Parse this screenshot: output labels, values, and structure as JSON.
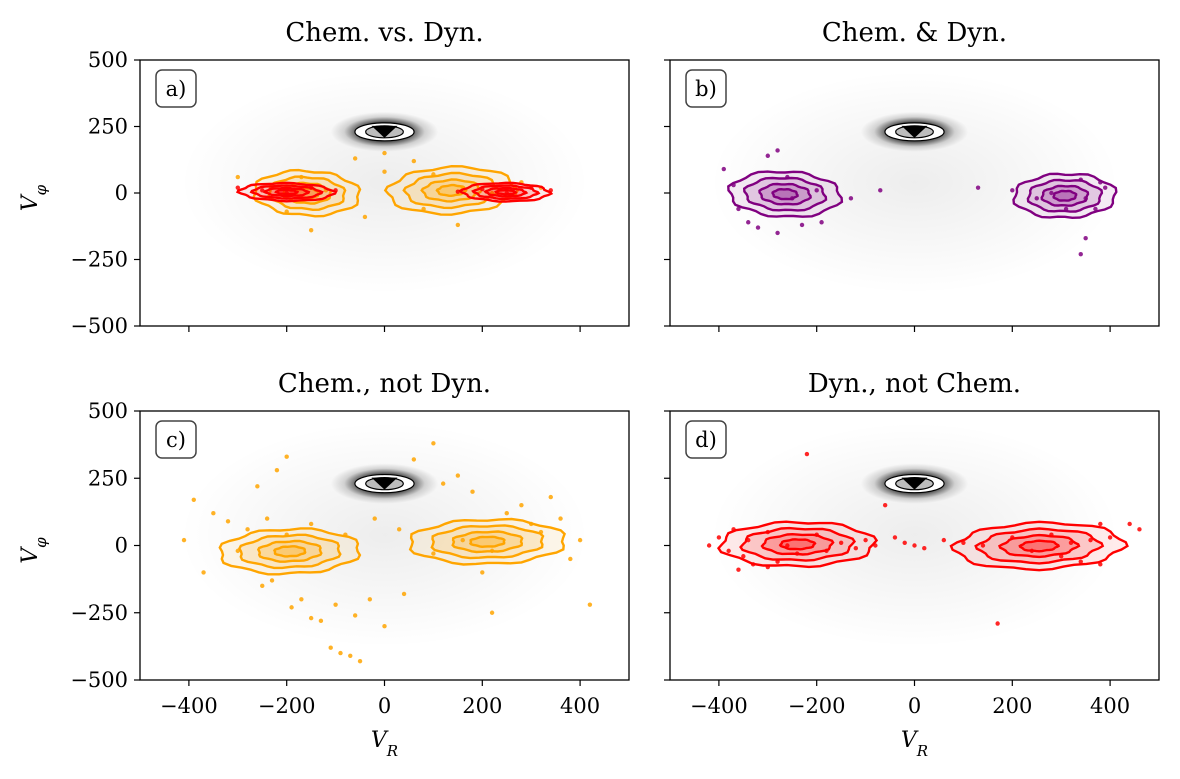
{
  "chart_data": [
    {
      "type": "scatter",
      "panel": "a)",
      "title": "Chem. vs. Dyn.",
      "xlabel": "",
      "ylabel": "V_φ",
      "xlim": [
        -500,
        500
      ],
      "ylim": [
        -500,
        500
      ],
      "xticks": [
        -400,
        -200,
        0,
        200,
        400
      ],
      "yticks": [
        500,
        250,
        0,
        -250,
        -500
      ],
      "xtick_labels_shown": false,
      "ytick_labels_shown": true,
      "background": {
        "color": "#000000",
        "center": [
          0,
          230
        ],
        "spread": [
          110,
          75
        ]
      },
      "series": [
        {
          "color": "#ffa500",
          "contours": true,
          "points": [
            [
              -230,
              20
            ],
            [
              -170,
              60
            ],
            [
              -120,
              10
            ],
            [
              -60,
              130
            ],
            [
              0,
              150
            ],
            [
              60,
              120
            ],
            [
              100,
              70
            ],
            [
              160,
              20
            ],
            [
              220,
              0
            ],
            [
              280,
              40
            ],
            [
              -200,
              -70
            ],
            [
              -40,
              -90
            ],
            [
              80,
              -60
            ],
            [
              150,
              -120
            ],
            [
              -300,
              60
            ],
            [
              320,
              20
            ],
            [
              -150,
              -140
            ],
            [
              0,
              80
            ]
          ]
        },
        {
          "color": "#ff0000",
          "contours": true,
          "points": [
            [
              -300,
              20
            ],
            [
              -250,
              10
            ],
            [
              -200,
              0
            ],
            [
              -150,
              20
            ],
            [
              -100,
              10
            ],
            [
              150,
              5
            ],
            [
              200,
              15
            ],
            [
              250,
              0
            ],
            [
              300,
              20
            ],
            [
              340,
              10
            ]
          ]
        }
      ]
    },
    {
      "type": "scatter",
      "panel": "b)",
      "title": "Chem. & Dyn.",
      "xlabel": "",
      "ylabel": "",
      "xlim": [
        -500,
        500
      ],
      "ylim": [
        -500,
        500
      ],
      "xticks": [
        -400,
        -200,
        0,
        200,
        400
      ],
      "yticks": [
        500,
        250,
        0,
        -250,
        -500
      ],
      "xtick_labels_shown": false,
      "ytick_labels_shown": false,
      "background": {
        "color": "#000000",
        "center": [
          0,
          230
        ],
        "spread": [
          110,
          75
        ]
      },
      "series": [
        {
          "color": "#800080",
          "contours": true,
          "points": [
            [
              -390,
              90
            ],
            [
              -370,
              30
            ],
            [
              -360,
              -60
            ],
            [
              -340,
              -110
            ],
            [
              -320,
              -130
            ],
            [
              -300,
              140
            ],
            [
              -280,
              160
            ],
            [
              -260,
              60
            ],
            [
              -230,
              -120
            ],
            [
              -190,
              -110
            ],
            [
              -130,
              -20
            ],
            [
              -70,
              10
            ],
            [
              130,
              20
            ],
            [
              250,
              -20
            ],
            [
              310,
              -60
            ],
            [
              340,
              50
            ],
            [
              350,
              -20
            ],
            [
              370,
              -60
            ],
            [
              380,
              40
            ],
            [
              390,
              20
            ],
            [
              350,
              -170
            ],
            [
              340,
              -230
            ],
            [
              -280,
              -150
            ],
            [
              -250,
              -20
            ],
            [
              -200,
              10
            ],
            [
              200,
              10
            ],
            [
              280,
              0
            ]
          ]
        }
      ]
    },
    {
      "type": "scatter",
      "panel": "c)",
      "title": "Chem., not Dyn.",
      "xlabel": "V_R",
      "ylabel": "V_φ",
      "xlim": [
        -500,
        500
      ],
      "ylim": [
        -500,
        500
      ],
      "xticks": [
        -400,
        -200,
        0,
        200,
        400
      ],
      "yticks": [
        500,
        250,
        0,
        -250,
        -500
      ],
      "xtick_labels_shown": true,
      "ytick_labels_shown": true,
      "background": {
        "color": "#000000",
        "center": [
          0,
          230
        ],
        "spread": [
          110,
          75
        ]
      },
      "series": [
        {
          "color": "#ffa500",
          "contours": true,
          "points": [
            [
              -410,
              20
            ],
            [
              -390,
              170
            ],
            [
              -370,
              -100
            ],
            [
              -350,
              120
            ],
            [
              -320,
              90
            ],
            [
              -300,
              -20
            ],
            [
              -280,
              60
            ],
            [
              -260,
              220
            ],
            [
              -250,
              -150
            ],
            [
              -230,
              -130
            ],
            [
              -220,
              280
            ],
            [
              -200,
              330
            ],
            [
              -190,
              -230
            ],
            [
              -170,
              -200
            ],
            [
              -150,
              -270
            ],
            [
              -130,
              -280
            ],
            [
              -110,
              -380
            ],
            [
              -90,
              -400
            ],
            [
              -70,
              -410
            ],
            [
              -50,
              -430
            ],
            [
              -100,
              -220
            ],
            [
              -60,
              -260
            ],
            [
              -30,
              -200
            ],
            [
              0,
              -300
            ],
            [
              40,
              -180
            ],
            [
              60,
              320
            ],
            [
              100,
              380
            ],
            [
              120,
              230
            ],
            [
              150,
              260
            ],
            [
              180,
              200
            ],
            [
              200,
              -100
            ],
            [
              220,
              -250
            ],
            [
              250,
              120
            ],
            [
              280,
              150
            ],
            [
              300,
              80
            ],
            [
              320,
              50
            ],
            [
              340,
              180
            ],
            [
              360,
              100
            ],
            [
              380,
              -50
            ],
            [
              400,
              20
            ],
            [
              420,
              -220
            ],
            [
              -150,
              80
            ],
            [
              -80,
              40
            ],
            [
              -20,
              100
            ],
            [
              30,
              60
            ],
            [
              100,
              -30
            ],
            [
              160,
              20
            ],
            [
              -200,
              40
            ],
            [
              -240,
              100
            ],
            [
              220,
              -20
            ]
          ]
        }
      ]
    },
    {
      "type": "scatter",
      "panel": "d)",
      "title": "Dyn., not Chem.",
      "xlabel": "V_R",
      "ylabel": "",
      "xlim": [
        -500,
        500
      ],
      "ylim": [
        -500,
        500
      ],
      "xticks": [
        -400,
        -200,
        0,
        200,
        400
      ],
      "yticks": [
        500,
        250,
        0,
        -250,
        -500
      ],
      "xtick_labels_shown": true,
      "ytick_labels_shown": false,
      "background": {
        "color": "#000000",
        "center": [
          0,
          230
        ],
        "spread": [
          110,
          75
        ]
      },
      "series": [
        {
          "color": "#ff0000",
          "contours": true,
          "points": [
            [
              -420,
              0
            ],
            [
              -400,
              30
            ],
            [
              -380,
              -20
            ],
            [
              -370,
              60
            ],
            [
              -350,
              -40
            ],
            [
              -340,
              20
            ],
            [
              -330,
              -70
            ],
            [
              -300,
              50
            ],
            [
              -280,
              -60
            ],
            [
              -260,
              0
            ],
            [
              -240,
              -30
            ],
            [
              -220,
              340
            ],
            [
              -200,
              40
            ],
            [
              -180,
              -20
            ],
            [
              -150,
              10
            ],
            [
              -120,
              -10
            ],
            [
              -100,
              20
            ],
            [
              -80,
              0
            ],
            [
              -60,
              150
            ],
            [
              -40,
              30
            ],
            [
              -20,
              10
            ],
            [
              0,
              0
            ],
            [
              20,
              -10
            ],
            [
              60,
              20
            ],
            [
              100,
              10
            ],
            [
              140,
              0
            ],
            [
              170,
              -290
            ],
            [
              200,
              30
            ],
            [
              240,
              -20
            ],
            [
              280,
              40
            ],
            [
              300,
              -40
            ],
            [
              320,
              10
            ],
            [
              340,
              -60
            ],
            [
              360,
              20
            ],
            [
              380,
              -70
            ],
            [
              400,
              30
            ],
            [
              440,
              80
            ],
            [
              460,
              60
            ],
            [
              380,
              80
            ],
            [
              -360,
              -90
            ],
            [
              -300,
              -80
            ]
          ]
        }
      ]
    }
  ],
  "layout_labels": {
    "vr": "V_R",
    "vphi": "V_φ"
  }
}
